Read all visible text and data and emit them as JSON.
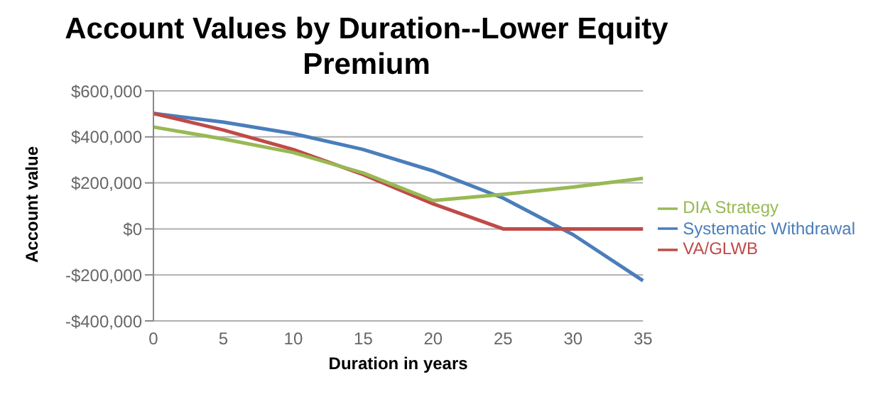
{
  "chart_data": {
    "type": "line",
    "title": "Account Values by Duration--Lower Equity Premium",
    "xlabel": "Duration in years",
    "ylabel": "Account value",
    "categories": [
      "0",
      "5",
      "10",
      "15",
      "20",
      "25",
      "30",
      "35"
    ],
    "series": [
      {
        "name": "Systematic Withdrawal",
        "color": "#4a7ebb",
        "values": [
          502000,
          464000,
          414000,
          345000,
          252000,
          134000,
          -25000,
          -225000
        ]
      },
      {
        "name": "VA/GLWB",
        "color": "#be4b48",
        "values": [
          502000,
          430000,
          345000,
          236000,
          109000,
          0,
          0,
          0
        ]
      },
      {
        "name": "DIA Strategy",
        "color": "#98b954",
        "values": [
          443000,
          391000,
          332000,
          243000,
          123000,
          150000,
          182000,
          220000
        ]
      }
    ],
    "ylim": [
      -400000,
      600000
    ],
    "yticks": [
      {
        "value": -400000,
        "label": "-$400,000"
      },
      {
        "value": -200000,
        "label": "-$200,000"
      },
      {
        "value": 0,
        "label": "$0"
      },
      {
        "value": 200000,
        "label": "$200,000"
      },
      {
        "value": 400000,
        "label": "$400,000"
      },
      {
        "value": 600000,
        "label": "$600,000"
      }
    ],
    "grid": "y",
    "legend": "right",
    "marker": "none",
    "line_style": "solid"
  }
}
